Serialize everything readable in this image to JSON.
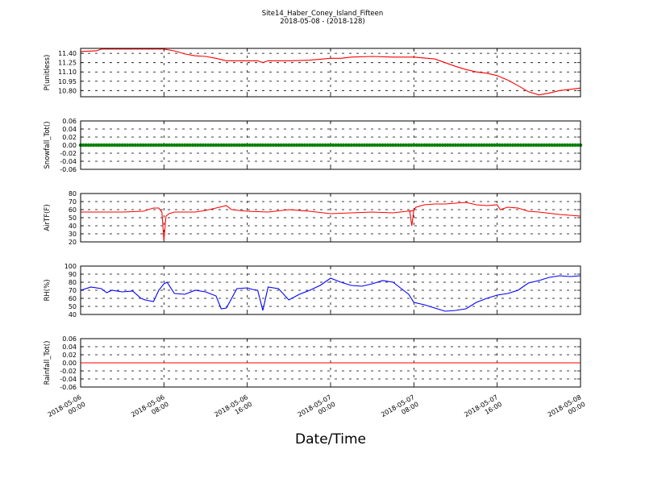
{
  "chart_data": {
    "type": "line",
    "title": "Site14_Haber_Coney_Island_Fifteen",
    "subtitle": "2018-05-08 - (2018-128)",
    "xlabel": "Date/Time",
    "grid": true,
    "xlim": [
      "2018-05-06 00:00",
      "2018-05-08 00:00"
    ],
    "xticks": [
      {
        "value": "2018-05-06 00:00",
        "line1": "2018-05-06",
        "line2": "00:00"
      },
      {
        "value": "2018-05-06 08:00",
        "line1": "2018-05-06",
        "line2": "08:00"
      },
      {
        "value": "2018-05-06 16:00",
        "line1": "2018-05-06",
        "line2": "16:00"
      },
      {
        "value": "2018-05-07 00:00",
        "line1": "2018-05-07",
        "line2": "00:00"
      },
      {
        "value": "2018-05-07 08:00",
        "line1": "2018-05-07",
        "line2": "08:00"
      },
      {
        "value": "2018-05-07 16:00",
        "line1": "2018-05-07",
        "line2": "16:00"
      },
      {
        "value": "2018-05-08 00:00",
        "line1": "2018-05-08",
        "line2": "00:00"
      }
    ],
    "panels": [
      {
        "ylabel": "P(unitless)",
        "ylim": [
          10.7,
          11.48
        ],
        "yticks": [
          "11.40",
          "11.25",
          "11.10",
          "10.95",
          "10.80"
        ],
        "color": "#ff0000",
        "marker": false,
        "x_hours": [
          0,
          1.5,
          2,
          8,
          9,
          10,
          11,
          12,
          13,
          14,
          15,
          16,
          17,
          17.5,
          18,
          20,
          22,
          24,
          25,
          26,
          28,
          30,
          32,
          34,
          35,
          36,
          37,
          38,
          39,
          40,
          41,
          42,
          43,
          44,
          45,
          46,
          47,
          48
        ],
        "values": [
          11.43,
          11.44,
          11.47,
          11.47,
          11.44,
          11.39,
          11.36,
          11.35,
          11.32,
          11.28,
          11.28,
          11.28,
          11.28,
          11.25,
          11.28,
          11.28,
          11.29,
          11.32,
          11.32,
          11.34,
          11.35,
          11.34,
          11.34,
          11.31,
          11.25,
          11.19,
          11.14,
          11.1,
          11.08,
          11.04,
          10.97,
          10.88,
          10.78,
          10.73,
          10.76,
          10.8,
          10.82,
          10.84
        ]
      },
      {
        "ylabel": "Snowfall_Tot()",
        "ylim": [
          -0.06,
          0.06
        ],
        "yticks": [
          "0.06",
          "0.04",
          "0.02",
          "0.00",
          "-0.02",
          "-0.04",
          "-0.06"
        ],
        "color": "#008000",
        "marker": true,
        "x_hours": [
          0,
          48
        ],
        "values": [
          0,
          0
        ]
      },
      {
        "ylabel": "AirTF(F)",
        "ylim": [
          20,
          80
        ],
        "yticks": [
          "80",
          "70",
          "60",
          "50",
          "40",
          "30",
          "20"
        ],
        "color": "#ff0000",
        "marker": false,
        "x_hours": [
          0,
          2,
          4,
          6,
          7,
          7.5,
          7.8,
          8,
          8.2,
          8.5,
          9,
          10,
          11,
          12,
          13,
          14,
          14.5,
          16,
          18,
          20,
          22,
          24,
          26,
          28,
          30,
          32,
          31.6,
          31.8,
          32,
          32.2,
          33,
          34,
          35,
          36,
          37,
          38,
          39,
          40,
          40.3,
          41,
          42,
          43,
          44,
          46,
          48
        ],
        "values": [
          57,
          57,
          57,
          58,
          62,
          62,
          57,
          22,
          52,
          55,
          57,
          57,
          57,
          59,
          62,
          65,
          60,
          58,
          57,
          60,
          58,
          55,
          56,
          57,
          56,
          59,
          58,
          40,
          60,
          63,
          66,
          67,
          67,
          68,
          69,
          66,
          65,
          66,
          60,
          63,
          62,
          58,
          57,
          54,
          52
        ]
      },
      {
        "ylabel": "RH(%)",
        "ylim": [
          40,
          100
        ],
        "yticks": [
          "100",
          "90",
          "80",
          "70",
          "60",
          "50",
          "40"
        ],
        "color": "#0000ff",
        "marker": false,
        "x_hours": [
          0,
          1,
          2,
          2.5,
          3,
          4,
          5,
          5.8,
          6.2,
          7,
          7.5,
          8,
          8.3,
          9,
          10,
          11,
          12,
          13,
          13.5,
          14,
          15,
          16,
          16.5,
          17,
          17.5,
          18,
          19,
          20,
          21,
          22,
          23,
          24,
          25,
          26,
          27,
          28,
          29,
          30,
          31,
          31.5,
          32,
          33,
          34,
          35,
          36,
          37,
          38,
          39,
          40,
          41,
          42,
          43,
          44,
          45,
          46,
          47,
          48
        ],
        "values": [
          70,
          74,
          72,
          67,
          70,
          68,
          69,
          60,
          58,
          56,
          70,
          78,
          80,
          66,
          65,
          70,
          68,
          63,
          47,
          48,
          72,
          73,
          71,
          70,
          45,
          74,
          72,
          58,
          65,
          70,
          76,
          85,
          80,
          76,
          75,
          78,
          82,
          80,
          70,
          65,
          55,
          52,
          48,
          44,
          45,
          47,
          55,
          60,
          64,
          66,
          70,
          79,
          82,
          86,
          88,
          87,
          88
        ]
      },
      {
        "ylabel": "Rainfall_Tot()",
        "ylim": [
          -0.06,
          0.06
        ],
        "yticks": [
          "0.06",
          "0.04",
          "0.02",
          "0.00",
          "-0.02",
          "-0.04",
          "-0.06"
        ],
        "color": "#ff0000",
        "marker": false,
        "x_hours": [
          0,
          48
        ],
        "values": [
          0,
          0
        ]
      }
    ]
  }
}
